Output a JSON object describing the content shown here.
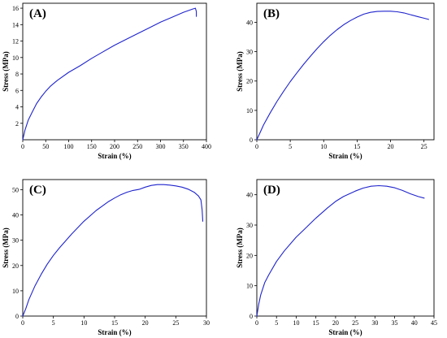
{
  "colors": {
    "curve": "#1f24cc",
    "axis": "#000000"
  },
  "chart_data": [
    {
      "type": "line",
      "panel_label": "(A)",
      "xlabel": "Strain (%)",
      "ylabel": "Stress (MPa)",
      "xlim": [
        0,
        400
      ],
      "ylim": [
        0,
        16.6
      ],
      "xticks": [
        0,
        50,
        100,
        150,
        200,
        250,
        300,
        350,
        400
      ],
      "yticks": [
        2,
        4,
        6,
        8,
        10,
        12,
        14,
        16
      ],
      "series": [
        {
          "x": [
            0,
            5,
            12,
            20,
            30,
            40,
            50,
            60,
            75,
            100,
            125,
            150,
            175,
            200,
            225,
            250,
            275,
            300,
            325,
            350,
            370,
            376,
            378,
            378
          ],
          "y": [
            0,
            1.2,
            2.4,
            3.3,
            4.4,
            5.2,
            5.9,
            6.5,
            7.2,
            8.2,
            9.0,
            9.9,
            10.7,
            11.5,
            12.2,
            12.9,
            13.6,
            14.3,
            14.9,
            15.5,
            15.9,
            16.0,
            15.6,
            15.0
          ]
        }
      ]
    },
    {
      "type": "line",
      "panel_label": "(B)",
      "xlabel": "Strain (%)",
      "ylabel": "Stress (MPa)",
      "xlim": [
        0,
        26.5
      ],
      "ylim": [
        0,
        46.5
      ],
      "xticks": [
        0,
        5,
        10,
        15,
        20,
        25
      ],
      "yticks": [
        0,
        10,
        20,
        30,
        40
      ],
      "series": [
        {
          "x": [
            0,
            0.5,
            1,
            2,
            3,
            4,
            5,
            6,
            7,
            8,
            9,
            10,
            11,
            12,
            13,
            14,
            15,
            16,
            17,
            18,
            19,
            20,
            21,
            22,
            23,
            24,
            25,
            25.7
          ],
          "y": [
            0,
            2.5,
            5,
            9.2,
            13,
            16.5,
            19.8,
            22.8,
            25.7,
            28.4,
            31,
            33.4,
            35.6,
            37.5,
            39.2,
            40.6,
            41.8,
            42.8,
            43.4,
            43.7,
            43.8,
            43.8,
            43.6,
            43.2,
            42.6,
            42,
            41.4,
            41
          ]
        }
      ]
    },
    {
      "type": "line",
      "panel_label": "(C)",
      "xlabel": "Strain (%)",
      "ylabel": "Stress (MPa)",
      "xlim": [
        0,
        30
      ],
      "ylim": [
        0,
        54
      ],
      "xticks": [
        0,
        5,
        10,
        15,
        20,
        25,
        30
      ],
      "yticks": [
        0,
        10,
        20,
        30,
        40,
        50
      ],
      "series": [
        {
          "x": [
            0,
            0.5,
            1,
            2,
            3,
            4,
            5,
            6,
            8,
            10,
            12,
            14,
            15,
            16,
            17,
            18,
            19,
            20,
            21,
            22,
            23,
            24,
            25,
            26,
            27,
            28,
            28.7,
            29.1,
            29.3,
            29.4
          ],
          "y": [
            0,
            3,
            6.5,
            12,
            16.5,
            20.5,
            24,
            27,
            32.5,
            37.5,
            41.8,
            45.3,
            46.7,
            48,
            49,
            49.7,
            50.1,
            51,
            51.7,
            52,
            52,
            51.8,
            51.5,
            51,
            50.2,
            49,
            47.5,
            46,
            42,
            37.5
          ]
        }
      ]
    },
    {
      "type": "line",
      "panel_label": "(D)",
      "xlabel": "Strain (%)",
      "ylabel": "Stress (MPa)",
      "xlim": [
        0,
        45
      ],
      "ylim": [
        0,
        45
      ],
      "xticks": [
        0,
        5,
        10,
        15,
        20,
        25,
        30,
        35,
        40,
        45
      ],
      "yticks": [
        0,
        10,
        20,
        30,
        40
      ],
      "series": [
        {
          "x": [
            0,
            0.5,
            1,
            2,
            3,
            5,
            7,
            10,
            12,
            15,
            18,
            20,
            22,
            25,
            27,
            29,
            31,
            33,
            35,
            37,
            39,
            41,
            42.5
          ],
          "y": [
            0,
            4,
            7,
            11,
            13.5,
            18,
            21.5,
            26,
            28.5,
            32.3,
            35.7,
            37.8,
            39.4,
            41.2,
            42.2,
            42.8,
            43,
            42.8,
            42.3,
            41.4,
            40.3,
            39.4,
            38.9
          ]
        }
      ]
    }
  ]
}
